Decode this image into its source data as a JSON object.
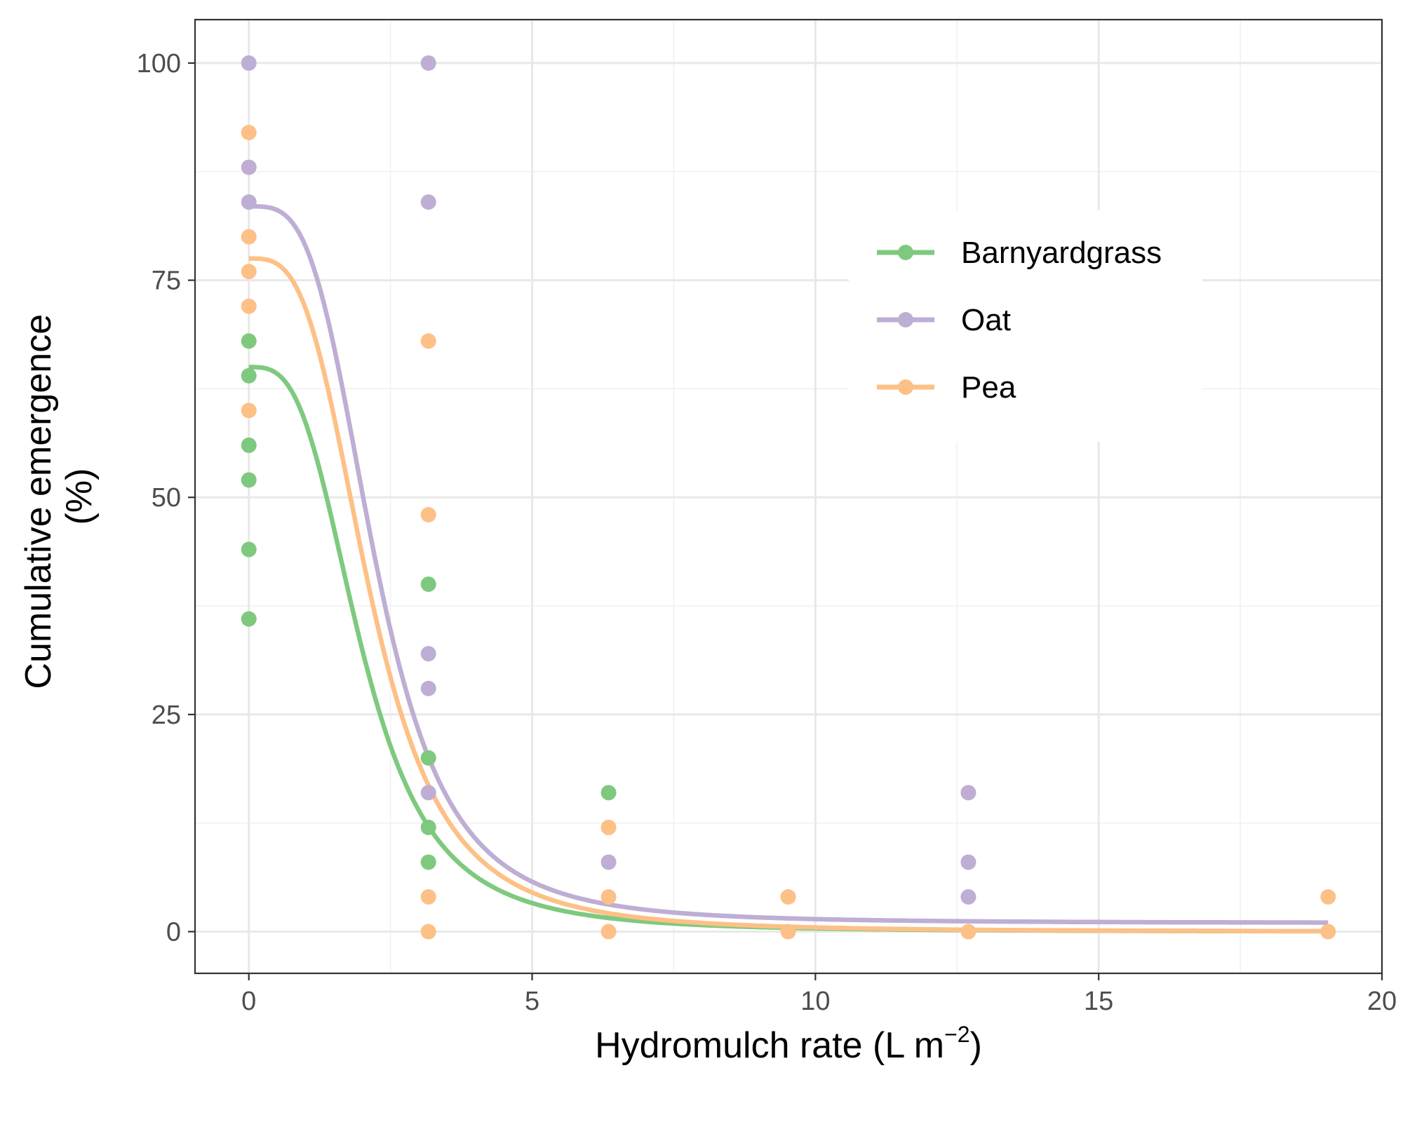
{
  "chart_data": {
    "type": "scatter",
    "title": "",
    "xlabel_main": "Hydromulch rate (L m",
    "xlabel_sup": "−2",
    "xlabel_close": ")",
    "ylabel_line1": "Cumulative emergence",
    "ylabel_line2": "(%)",
    "xlim": [
      -0.95,
      20
    ],
    "ylim": [
      -4.8,
      105
    ],
    "x_ticks": [
      0,
      5,
      10,
      15,
      20
    ],
    "x_tick_labels": [
      "0",
      "5",
      "10",
      "15",
      "20"
    ],
    "y_ticks": [
      0,
      25,
      50,
      75,
      100
    ],
    "y_tick_labels": [
      "0",
      "25",
      "50",
      "75",
      "100"
    ],
    "grid": true,
    "legend_position": "top-right",
    "series": [
      {
        "name": "Barnyardgrass",
        "color": "#7fc97f",
        "points": [
          [
            0,
            68
          ],
          [
            0,
            64
          ],
          [
            0,
            56
          ],
          [
            0,
            52
          ],
          [
            0,
            44
          ],
          [
            0,
            36
          ],
          [
            3.17,
            40
          ],
          [
            3.17,
            20
          ],
          [
            3.17,
            12
          ],
          [
            3.17,
            8
          ],
          [
            6.35,
            16
          ]
        ],
        "fit": {
          "upper": 65,
          "lower": 0,
          "ed50": 2.0,
          "slope": 3.2
        }
      },
      {
        "name": "Oat",
        "color": "#beaed4",
        "points": [
          [
            0,
            100
          ],
          [
            0,
            88
          ],
          [
            0,
            84
          ],
          [
            3.17,
            100
          ],
          [
            3.17,
            84
          ],
          [
            3.17,
            32
          ],
          [
            3.17,
            28
          ],
          [
            3.17,
            16
          ],
          [
            6.35,
            8
          ],
          [
            12.7,
            16
          ],
          [
            12.7,
            8
          ],
          [
            12.7,
            4
          ]
        ],
        "fit": {
          "upper": 83.5,
          "lower": 1,
          "ed50": 2.25,
          "slope": 3.5
        }
      },
      {
        "name": "Pea",
        "color": "#fdc086",
        "points": [
          [
            0,
            92
          ],
          [
            0,
            80
          ],
          [
            0,
            76
          ],
          [
            0,
            72
          ],
          [
            0,
            60
          ],
          [
            3.17,
            68
          ],
          [
            3.17,
            48
          ],
          [
            3.17,
            4
          ],
          [
            3.17,
            0
          ],
          [
            6.35,
            12
          ],
          [
            6.35,
            4
          ],
          [
            6.35,
            0
          ],
          [
            9.52,
            4
          ],
          [
            9.52,
            0
          ],
          [
            12.7,
            0
          ],
          [
            19.05,
            4
          ],
          [
            19.05,
            0
          ]
        ],
        "fit": {
          "upper": 77.5,
          "lower": 0,
          "ed50": 2.15,
          "slope": 3.3
        }
      }
    ]
  }
}
